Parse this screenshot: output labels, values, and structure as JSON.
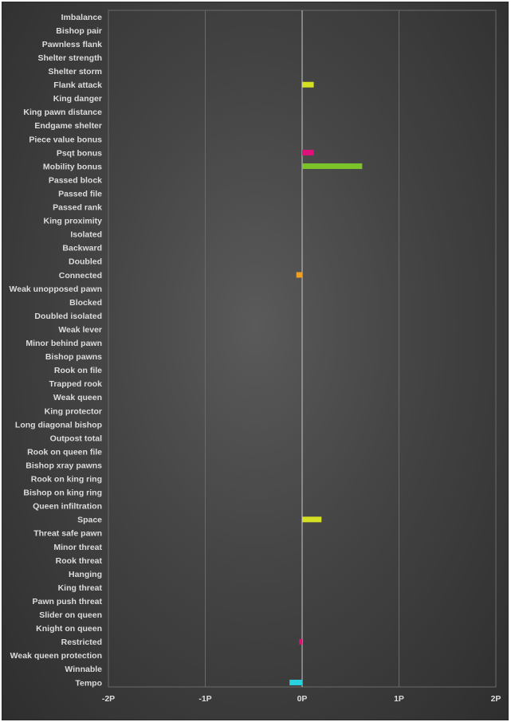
{
  "chart_data": {
    "type": "bar",
    "orientation": "horizontal",
    "categories": [
      "Imbalance",
      "Bishop pair",
      "Pawnless flank",
      "Shelter strength",
      "Shelter storm",
      "Flank attack",
      "King danger",
      "King pawn distance",
      "Endgame shelter",
      "Piece value bonus",
      "Psqt bonus",
      "Mobility bonus",
      "Passed block",
      "Passed file",
      "Passed rank",
      "King proximity",
      "Isolated",
      "Backward",
      "Doubled",
      "Connected",
      "Weak unopposed pawn",
      "Blocked",
      "Doubled isolated",
      "Weak lever",
      "Minor behind pawn",
      "Bishop pawns",
      "Rook on file",
      "Trapped rook",
      "Weak queen",
      "King protector",
      "Long diagonal bishop",
      "Outpost total",
      "Rook on queen file",
      "Bishop xray pawns",
      "Rook on king ring",
      "Bishop on king ring",
      "Queen infiltration",
      "Space",
      "Threat safe pawn",
      "Minor threat",
      "Rook threat",
      "Hanging",
      "King threat",
      "Pawn push threat",
      "Slider on queen",
      "Knight on queen",
      "Restricted",
      "Weak queen protection",
      "Winnable",
      "Tempo"
    ],
    "values": [
      0,
      0,
      0,
      0,
      0,
      0.12,
      0,
      0,
      0,
      0,
      0.12,
      0.62,
      0,
      0,
      0,
      0,
      0,
      0,
      0,
      -0.06,
      0,
      0,
      0,
      0,
      0,
      0,
      0,
      0,
      0,
      0,
      0,
      0,
      0,
      0,
      0,
      0,
      0,
      0.2,
      0,
      0,
      0,
      0,
      0,
      0,
      0,
      0,
      -0.03,
      0,
      0,
      -0.13
    ],
    "colors": [
      "#888888",
      "#888888",
      "#888888",
      "#888888",
      "#888888",
      "#d4e021",
      "#888888",
      "#888888",
      "#888888",
      "#888888",
      "#e0107a",
      "#7cc42a",
      "#888888",
      "#888888",
      "#888888",
      "#888888",
      "#888888",
      "#888888",
      "#888888",
      "#f0a020",
      "#888888",
      "#888888",
      "#888888",
      "#888888",
      "#888888",
      "#888888",
      "#888888",
      "#888888",
      "#888888",
      "#888888",
      "#888888",
      "#888888",
      "#888888",
      "#888888",
      "#888888",
      "#888888",
      "#888888",
      "#d4e021",
      "#888888",
      "#888888",
      "#888888",
      "#888888",
      "#888888",
      "#888888",
      "#888888",
      "#888888",
      "#e0107a",
      "#888888",
      "#888888",
      "#28d0e0"
    ],
    "xticks": [
      "-2P",
      "-1P",
      "0P",
      "1P",
      "2P"
    ],
    "xlim": [
      -2,
      2
    ],
    "grid": true,
    "legend": "none",
    "title": "",
    "xlabel": "",
    "ylabel": ""
  }
}
